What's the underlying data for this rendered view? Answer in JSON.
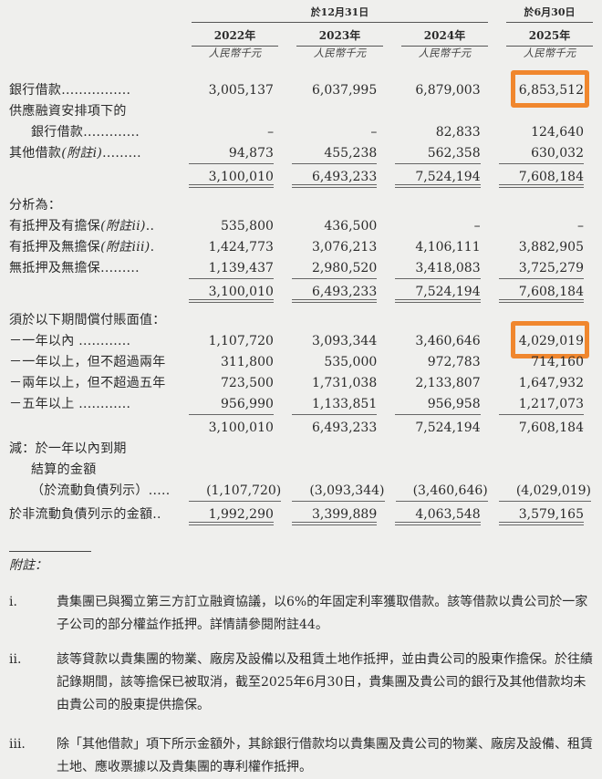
{
  "header": {
    "group_dec": "於12月31日",
    "group_jun": "於6月30日",
    "years": [
      "2022年",
      "2023年",
      "2024年",
      "2025年"
    ],
    "unit": "人民幣千元"
  },
  "colors": {
    "highlight": "#f0872e",
    "background": "#efefed"
  },
  "rows": [
    {
      "label": "銀行借款................",
      "values": [
        "3,005,137",
        "6,037,995",
        "6,879,003",
        "6,853,512"
      ],
      "highlight_col": 3
    },
    {
      "label": "供應融資安排項下的",
      "values": []
    },
    {
      "label": "銀行借款.............",
      "indent": true,
      "values": [
        "–",
        "–",
        "82,833",
        "124,640"
      ]
    },
    {
      "label": "其他借款",
      "note": "(附註i)",
      "leader": ".........",
      "values": [
        "94,873",
        "455,238",
        "562,358",
        "630,032"
      ],
      "underline": "single"
    },
    {
      "label": "",
      "type": "total",
      "values": [
        "3,100,010",
        "6,493,233",
        "7,524,194",
        "7,608,184"
      ],
      "underline": "double"
    },
    {
      "label": "分析為：",
      "type": "section",
      "values": []
    },
    {
      "label": "有抵押及有擔保",
      "note": "(附註ii)",
      "leader": "..",
      "values": [
        "535,800",
        "436,500",
        "–",
        "–"
      ]
    },
    {
      "label": "有抵押及無擔保",
      "note": "(附註iii)",
      "leader": ".",
      "values": [
        "1,424,773",
        "3,076,213",
        "4,106,111",
        "3,882,905"
      ]
    },
    {
      "label": "無抵押及無擔保.........",
      "values": [
        "1,139,437",
        "2,980,520",
        "3,418,083",
        "3,725,279"
      ],
      "underline": "single"
    },
    {
      "label": "",
      "type": "total",
      "values": [
        "3,100,010",
        "6,493,233",
        "7,524,194",
        "7,608,184"
      ],
      "underline": "double"
    },
    {
      "label": "須於以下期間償付賬面值：",
      "type": "section",
      "values": []
    },
    {
      "label": "－一年以內 ............",
      "values": [
        "1,107,720",
        "3,093,344",
        "3,460,646",
        "4,029,019"
      ],
      "highlight_col": 3
    },
    {
      "label": "－一年以上，但不超過兩年",
      "values": [
        "311,800",
        "535,000",
        "972,783",
        "714,160"
      ]
    },
    {
      "label": "－兩年以上，但不超過五年",
      "values": [
        "723,500",
        "1,731,038",
        "2,133,807",
        "1,647,932"
      ]
    },
    {
      "label": "－五年以上 ............",
      "values": [
        "956,990",
        "1,133,851",
        "956,958",
        "1,217,073"
      ],
      "underline": "single"
    },
    {
      "label": "",
      "type": "total",
      "values": [
        "3,100,010",
        "6,493,233",
        "7,524,194",
        "7,608,184"
      ]
    },
    {
      "label": "減：於一年以內到期",
      "values": []
    },
    {
      "label": "結算的金額",
      "indent": true,
      "values": []
    },
    {
      "label": "（於流動負債列示）.....",
      "indent": true,
      "values": [
        "(1,107,720)",
        "(3,093,344)",
        "(3,460,646)",
        "(4,029,019)"
      ],
      "underline": "single",
      "negative": true
    },
    {
      "label": "於非流動負債列示的金額..",
      "type": "total",
      "values": [
        "1,992,290",
        "3,399,889",
        "4,063,548",
        "3,579,165"
      ],
      "underline": "double"
    }
  ],
  "footnotes": {
    "title": "附註：",
    "items": [
      {
        "marker": "i.",
        "text": "貴集團已與獨立第三方訂立融資協議，以6%的年固定利率獲取借款。該等借款以貴公司於一家子公司的部分權益作抵押。詳情請參閱附註44。"
      },
      {
        "marker": "ii.",
        "text": "該等貸款以貴集團的物業、廠房及設備以及租賃土地作抵押，並由貴公司的股東作擔保。於往績記錄期間，該等擔保已被取消，截至2025年6月30日，貴集團及貴公司的銀行及其他借款均未由貴公司的股東提供擔保。"
      },
      {
        "marker": "iii.",
        "text": "除「其他借款」項下所示金額外，其餘銀行借款均以貴集團及貴公司的物業、廠房及設備、租賃土地、應收票據以及貴集團的專利權作抵押。"
      }
    ]
  }
}
